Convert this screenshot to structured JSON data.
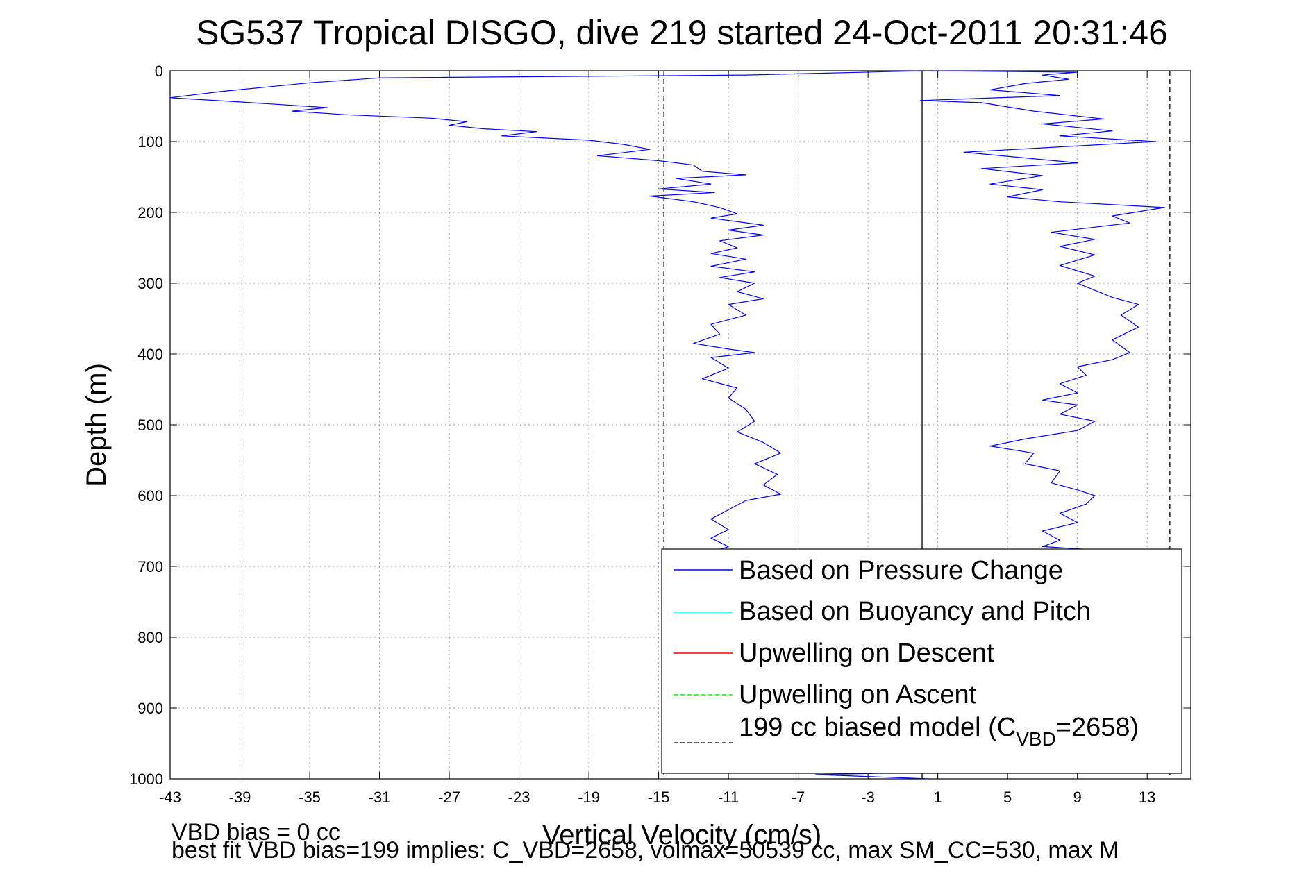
{
  "chart_data": {
    "type": "line",
    "title": "SG537 Tropical DISGO, dive 219 started 24-Oct-2011 20:31:46",
    "xlabel": "Vertical Velocity (cm/s)",
    "ylabel": "Depth (m)",
    "xlim": [
      -43,
      15.5
    ],
    "ylim": [
      0,
      1000
    ],
    "y_reversed": true,
    "x_ticks": [
      -43,
      -39,
      -35,
      -31,
      -27,
      -23,
      -19,
      -15,
      -11,
      -7,
      -3,
      1,
      5,
      9,
      13
    ],
    "y_ticks": [
      0,
      100,
      200,
      300,
      400,
      500,
      600,
      700,
      800,
      900,
      1000
    ],
    "grid": true,
    "legend_position": "bottom-right",
    "legend": [
      {
        "label": "Based on Pressure Change",
        "color": "#0000ff",
        "style": "solid"
      },
      {
        "label": "Based on Buoyancy and Pitch",
        "color": "#00ffff",
        "style": "solid"
      },
      {
        "label": "Upwelling on Descent",
        "color": "#ff0000",
        "style": "solid"
      },
      {
        "label": "Upwelling on Ascent",
        "color": "#00ff00",
        "style": "dashed"
      },
      {
        "label": "199 cc biased model (C",
        "sub": "VBD",
        "suffix": "=2658)",
        "color": "#000000",
        "style": "dashed"
      }
    ],
    "reference_lines": [
      {
        "x": -14.7,
        "style": "dashed",
        "color": "#000000"
      },
      {
        "x": 14.3,
        "style": "dashed",
        "color": "#000000"
      },
      {
        "x": 0.1,
        "style": "solid",
        "color": "#000000"
      }
    ],
    "series": [
      {
        "name": "Based on Pressure Change",
        "color": "#0000ff",
        "segment": "descent",
        "points": [
          [
            0.2,
            0
          ],
          [
            -10,
            6
          ],
          [
            -31,
            10
          ],
          [
            -35,
            17
          ],
          [
            -40,
            29
          ],
          [
            -43,
            38
          ],
          [
            -39,
            44
          ],
          [
            -34,
            52
          ],
          [
            -36,
            57
          ],
          [
            -33,
            62
          ],
          [
            -28,
            67
          ],
          [
            -26,
            72
          ],
          [
            -27,
            77
          ],
          [
            -25,
            82
          ],
          [
            -22,
            86
          ],
          [
            -24,
            92
          ],
          [
            -19,
            98
          ],
          [
            -17,
            104
          ],
          [
            -15.5,
            111
          ],
          [
            -18.5,
            120
          ],
          [
            -15,
            127
          ],
          [
            -13,
            133
          ],
          [
            -12.5,
            142
          ],
          [
            -10,
            147
          ],
          [
            -14,
            152
          ],
          [
            -12,
            160
          ],
          [
            -15,
            167
          ],
          [
            -11.8,
            172
          ],
          [
            -15.5,
            177
          ],
          [
            -13,
            185
          ],
          [
            -11.5,
            193
          ],
          [
            -10.5,
            202
          ],
          [
            -12,
            208
          ],
          [
            -9,
            218
          ],
          [
            -11,
            225
          ],
          [
            -9,
            232
          ],
          [
            -11.5,
            240
          ],
          [
            -10.5,
            250
          ],
          [
            -12,
            258
          ],
          [
            -10,
            266
          ],
          [
            -12,
            276
          ],
          [
            -9.5,
            284
          ],
          [
            -11.5,
            292
          ],
          [
            -9.5,
            300
          ],
          [
            -10.5,
            312
          ],
          [
            -9,
            322
          ],
          [
            -11,
            330
          ],
          [
            -10,
            345
          ],
          [
            -12,
            358
          ],
          [
            -11.5,
            372
          ],
          [
            -13,
            385
          ],
          [
            -11,
            393
          ],
          [
            -9.5,
            398
          ],
          [
            -12,
            405
          ],
          [
            -11,
            420
          ],
          [
            -12.5,
            435
          ],
          [
            -10.5,
            448
          ],
          [
            -11,
            462
          ],
          [
            -10,
            478
          ],
          [
            -9.5,
            495
          ],
          [
            -10.5,
            510
          ],
          [
            -9,
            525
          ],
          [
            -8,
            540
          ],
          [
            -9.5,
            555
          ],
          [
            -8.2,
            570
          ],
          [
            -9,
            585
          ],
          [
            -8,
            598
          ],
          [
            -10,
            607
          ],
          [
            -11,
            620
          ],
          [
            -12,
            633
          ],
          [
            -11,
            648
          ],
          [
            -12,
            660
          ],
          [
            -11,
            672
          ],
          [
            -12,
            680
          ]
        ]
      },
      {
        "name": "Based on Pressure Change",
        "color": "#0000ff",
        "segment": "ascent",
        "points": [
          [
            0.5,
            1000
          ],
          [
            -6,
            994
          ],
          [
            6,
            988
          ],
          [
            12,
            987
          ],
          [
            12.2,
            680
          ],
          [
            7,
            672
          ],
          [
            8,
            663
          ],
          [
            7,
            650
          ],
          [
            9,
            638
          ],
          [
            8,
            625
          ],
          [
            9.5,
            612
          ],
          [
            10,
            600
          ],
          [
            9,
            592
          ],
          [
            7.5,
            582
          ],
          [
            8,
            565
          ],
          [
            6,
            555
          ],
          [
            6.5,
            540
          ],
          [
            4,
            530
          ],
          [
            6,
            520
          ],
          [
            9,
            508
          ],
          [
            10,
            495
          ],
          [
            8,
            485
          ],
          [
            9,
            472
          ],
          [
            7,
            465
          ],
          [
            9,
            455
          ],
          [
            8,
            442
          ],
          [
            9.5,
            430
          ],
          [
            9,
            418
          ],
          [
            11,
            408
          ],
          [
            12,
            398
          ],
          [
            11,
            380
          ],
          [
            12.5,
            362
          ],
          [
            11.5,
            345
          ],
          [
            12.5,
            330
          ],
          [
            11,
            320
          ],
          [
            10,
            310
          ],
          [
            9,
            300
          ],
          [
            10,
            290
          ],
          [
            8,
            275
          ],
          [
            10,
            260
          ],
          [
            8,
            248
          ],
          [
            10,
            238
          ],
          [
            7.5,
            228
          ],
          [
            12,
            215
          ],
          [
            11,
            205
          ],
          [
            14,
            193
          ],
          [
            8,
            185
          ],
          [
            5,
            178
          ],
          [
            7,
            168
          ],
          [
            4,
            160
          ],
          [
            7,
            148
          ],
          [
            3.5,
            138
          ],
          [
            9,
            130
          ],
          [
            2.5,
            115
          ],
          [
            13.5,
            100
          ],
          [
            8,
            92
          ],
          [
            11,
            85
          ],
          [
            7,
            75
          ],
          [
            10.5,
            68
          ],
          [
            6.5,
            57
          ],
          [
            3.5,
            45
          ],
          [
            0,
            42
          ],
          [
            8,
            35
          ],
          [
            4,
            27
          ],
          [
            6,
            18
          ],
          [
            8.5,
            12
          ],
          [
            7,
            6
          ],
          [
            9,
            2
          ],
          [
            0.5,
            0
          ]
        ]
      }
    ]
  },
  "footer": {
    "line1": "VBD bias = 0 cc",
    "line2": "best fit VBD bias=199 implies: C_VBD=2658, volmax=50539 cc, max SM_CC=530, max M"
  }
}
